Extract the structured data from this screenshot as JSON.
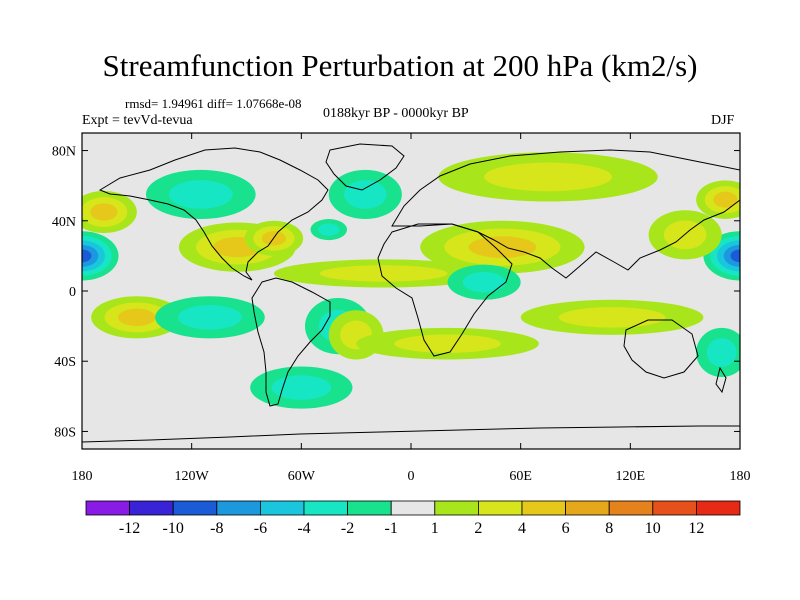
{
  "chart_data": {
    "type": "heatmap",
    "title": "Streamfunction Perturbation at 200 hPa (km2/s)",
    "stats_text": "rmsd= 1.94961 diff= 1.07668e-08",
    "experiment": "Expt = tevVd-tevua",
    "period": "0188kyr BP - 0000kyr BP",
    "season": "DJF",
    "x_range": [
      -180,
      180
    ],
    "y_range": [
      -90,
      90
    ],
    "x_ticks": [
      {
        "value": -180,
        "label": "180"
      },
      {
        "value": -120,
        "label": "120W"
      },
      {
        "value": -60,
        "label": "60W"
      },
      {
        "value": 0,
        "label": "0"
      },
      {
        "value": 60,
        "label": "60E"
      },
      {
        "value": 120,
        "label": "120E"
      },
      {
        "value": 180,
        "label": "180"
      }
    ],
    "y_ticks": [
      {
        "value": 80,
        "label": "80N"
      },
      {
        "value": 40,
        "label": "40N"
      },
      {
        "value": 0,
        "label": "0"
      },
      {
        "value": -40,
        "label": "40S"
      },
      {
        "value": -80,
        "label": "80S"
      }
    ],
    "colorbar": {
      "colors": [
        "#8a1be6",
        "#3a23d6",
        "#1b5bd8",
        "#1b98de",
        "#19c6de",
        "#16e6c3",
        "#19e28e",
        "#e6e6e6",
        "#a8e61b",
        "#d6e61b",
        "#e6c81b",
        "#e6a81b",
        "#e6821b",
        "#e6501b",
        "#e62a16"
      ],
      "labels": [
        "-12",
        "-10",
        "-8",
        "-6",
        "-4",
        "-2",
        "-1",
        "1",
        "2",
        "4",
        "6",
        "8",
        "10",
        "12"
      ]
    },
    "anomaly_centers": [
      {
        "lon": -180,
        "lat": 20,
        "value": -9,
        "rlon": 20,
        "rlat": 14
      },
      {
        "lon": 180,
        "lat": 20,
        "value": -9,
        "rlon": 20,
        "rlat": 14
      },
      {
        "lon": -168,
        "lat": 45,
        "value": 5,
        "rlon": 18,
        "rlat": 12
      },
      {
        "lon": 172,
        "lat": 52,
        "value": 5,
        "rlon": 16,
        "rlat": 11
      },
      {
        "lon": -115,
        "lat": 55,
        "value": -3,
        "rlon": 30,
        "rlat": 14
      },
      {
        "lon": -95,
        "lat": 25,
        "value": 5,
        "rlon": 32,
        "rlat": 14
      },
      {
        "lon": -75,
        "lat": 30,
        "value": 4,
        "rlon": 16,
        "rlat": 10
      },
      {
        "lon": -45,
        "lat": 35,
        "value": -2,
        "rlon": 10,
        "rlat": 6
      },
      {
        "lon": -25,
        "lat": 55,
        "value": -2,
        "rlon": 20,
        "rlat": 14
      },
      {
        "lon": -15,
        "lat": 10,
        "value": 2,
        "rlon": 60,
        "rlat": 8
      },
      {
        "lon": 50,
        "lat": 25,
        "value": 4,
        "rlon": 45,
        "rlat": 15
      },
      {
        "lon": 75,
        "lat": 65,
        "value": 2,
        "rlon": 60,
        "rlat": 14
      },
      {
        "lon": 40,
        "lat": 5,
        "value": -2,
        "rlon": 20,
        "rlat": 10
      },
      {
        "lon": 150,
        "lat": 32,
        "value": 2,
        "rlon": 20,
        "rlat": 14
      },
      {
        "lon": -150,
        "lat": -15,
        "value": 4,
        "rlon": 25,
        "rlat": 12
      },
      {
        "lon": -110,
        "lat": -15,
        "value": -3,
        "rlon": 30,
        "rlat": 12
      },
      {
        "lon": -40,
        "lat": -20,
        "value": -2,
        "rlon": 18,
        "rlat": 16
      },
      {
        "lon": -30,
        "lat": -25,
        "value": 2,
        "rlon": 15,
        "rlat": 14
      },
      {
        "lon": 20,
        "lat": -30,
        "value": 2,
        "rlon": 50,
        "rlat": 9
      },
      {
        "lon": -60,
        "lat": -55,
        "value": -2,
        "rlon": 28,
        "rlat": 12
      },
      {
        "lon": 110,
        "lat": -15,
        "value": 2,
        "rlon": 50,
        "rlat": 10
      },
      {
        "lon": 170,
        "lat": -35,
        "value": -2,
        "rlon": 14,
        "rlat": 14
      }
    ]
  }
}
